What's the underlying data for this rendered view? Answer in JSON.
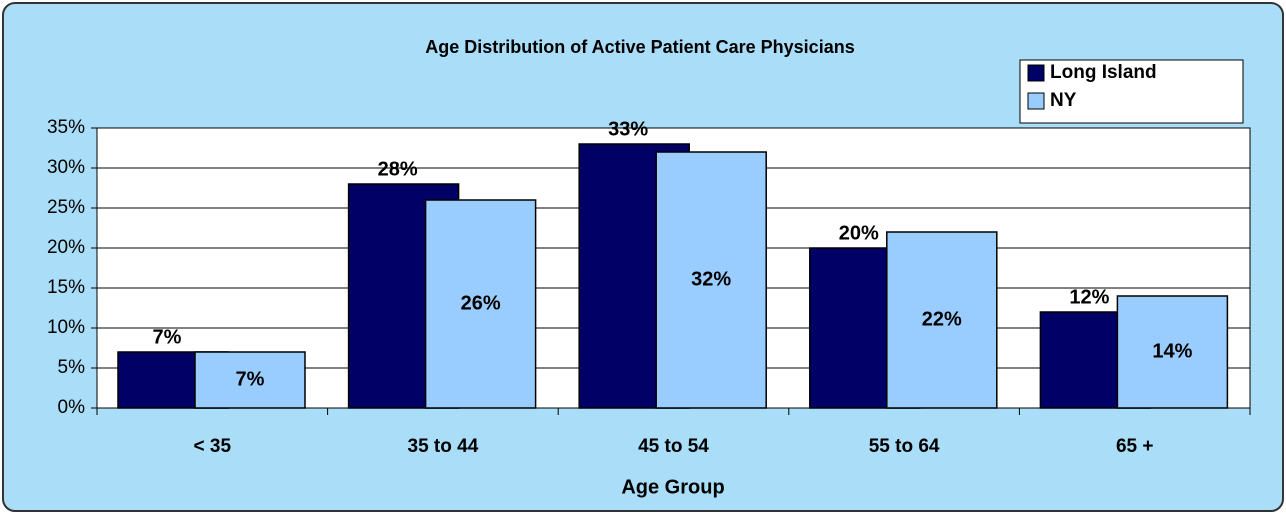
{
  "chart_data": {
    "type": "bar",
    "title": "Age Distribution of Active Patient Care Physicians",
    "x_label": "Age Group",
    "categories": [
      "< 35",
      "35 to 44",
      "45 to 54",
      "55 to 64",
      "65 +"
    ],
    "series": [
      {
        "name": "Long Island",
        "color": "#000066",
        "values": [
          7,
          28,
          33,
          20,
          12
        ],
        "value_labels": [
          "7%",
          "28%",
          "33%",
          "20%",
          "12%"
        ]
      },
      {
        "name": "NY",
        "color": "#99ccff",
        "values": [
          7,
          26,
          32,
          22,
          14
        ],
        "value_labels": [
          "7%",
          "26%",
          "32%",
          "22%",
          "14%"
        ]
      }
    ],
    "ylim": [
      0,
      35
    ],
    "yticks": [
      {
        "value": 0,
        "label": "0%"
      },
      {
        "value": 5,
        "label": "5%"
      },
      {
        "value": 10,
        "label": "10%"
      },
      {
        "value": 15,
        "label": "15%"
      },
      {
        "value": 20,
        "label": "20%"
      },
      {
        "value": 25,
        "label": "25%"
      },
      {
        "value": 30,
        "label": "30%"
      },
      {
        "value": 35,
        "label": "35%"
      }
    ],
    "grid": true,
    "legend": "top-right"
  }
}
